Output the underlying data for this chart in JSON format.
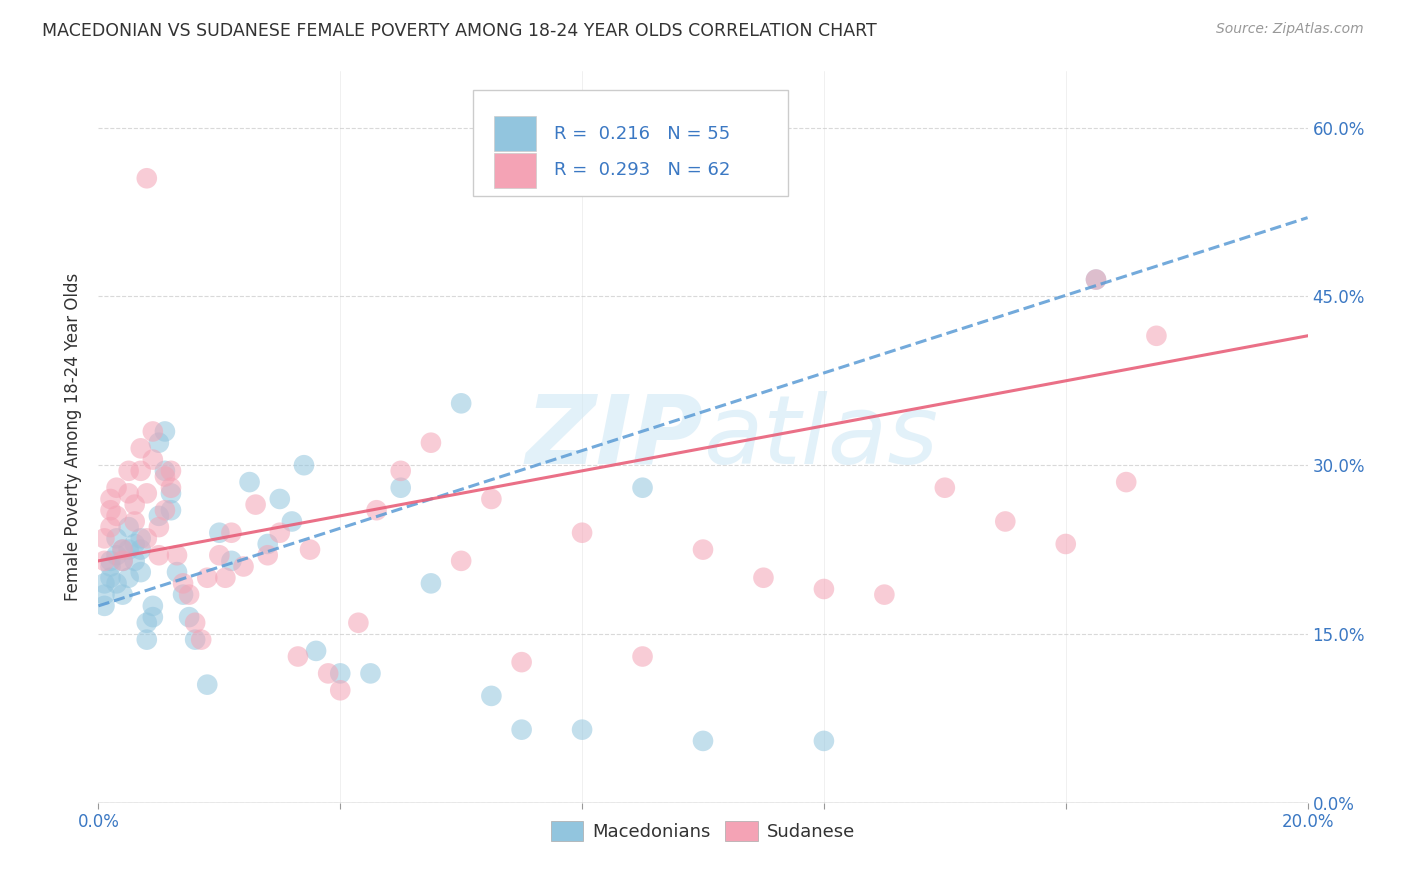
{
  "title": "MACEDONIAN VS SUDANESE FEMALE POVERTY AMONG 18-24 YEAR OLDS CORRELATION CHART",
  "source": "Source: ZipAtlas.com",
  "ylabel": "Female Poverty Among 18-24 Year Olds",
  "xlim": [
    0.0,
    0.2
  ],
  "ylim": [
    0.0,
    0.65
  ],
  "yticks": [
    0.0,
    0.15,
    0.3,
    0.45,
    0.6
  ],
  "ytick_labels": [
    "0.0%",
    "15.0%",
    "30.0%",
    "45.0%",
    "60.0%"
  ],
  "xticks": [
    0.0,
    0.04,
    0.08,
    0.12,
    0.16,
    0.2
  ],
  "macedonian_R": 0.216,
  "macedonian_N": 55,
  "sudanese_R": 0.293,
  "sudanese_N": 62,
  "macedonian_color": "#92c5de",
  "sudanese_color": "#f4a3b5",
  "trend_mac_color": "#5b9bd5",
  "trend_sud_color": "#e8607a",
  "watermark_color": "#d0e8f5",
  "background_color": "#ffffff",
  "grid_color": "#d0d0d0",
  "legend_label_mac": "Macedonians",
  "legend_label_sud": "Sudanese",
  "trend_mac_y0": 0.175,
  "trend_mac_y1": 0.52,
  "trend_sud_y0": 0.215,
  "trend_sud_y1": 0.415,
  "mac_scatter_x": [
    0.001,
    0.001,
    0.001,
    0.002,
    0.002,
    0.002,
    0.003,
    0.003,
    0.003,
    0.004,
    0.004,
    0.004,
    0.005,
    0.005,
    0.005,
    0.006,
    0.006,
    0.007,
    0.007,
    0.007,
    0.008,
    0.008,
    0.009,
    0.009,
    0.01,
    0.01,
    0.011,
    0.011,
    0.012,
    0.012,
    0.013,
    0.014,
    0.015,
    0.016,
    0.018,
    0.02,
    0.022,
    0.025,
    0.028,
    0.03,
    0.032,
    0.034,
    0.036,
    0.04,
    0.045,
    0.05,
    0.055,
    0.06,
    0.065,
    0.07,
    0.08,
    0.09,
    0.1,
    0.12,
    0.165
  ],
  "mac_scatter_y": [
    0.175,
    0.185,
    0.195,
    0.2,
    0.21,
    0.215,
    0.195,
    0.22,
    0.235,
    0.185,
    0.215,
    0.225,
    0.2,
    0.225,
    0.245,
    0.215,
    0.23,
    0.205,
    0.225,
    0.235,
    0.145,
    0.16,
    0.165,
    0.175,
    0.255,
    0.32,
    0.295,
    0.33,
    0.275,
    0.26,
    0.205,
    0.185,
    0.165,
    0.145,
    0.105,
    0.24,
    0.215,
    0.285,
    0.23,
    0.27,
    0.25,
    0.3,
    0.135,
    0.115,
    0.115,
    0.28,
    0.195,
    0.355,
    0.095,
    0.065,
    0.065,
    0.28,
    0.055,
    0.055,
    0.465
  ],
  "sud_scatter_x": [
    0.001,
    0.001,
    0.002,
    0.002,
    0.002,
    0.003,
    0.003,
    0.004,
    0.004,
    0.005,
    0.005,
    0.006,
    0.006,
    0.007,
    0.007,
    0.008,
    0.008,
    0.009,
    0.009,
    0.01,
    0.01,
    0.011,
    0.011,
    0.012,
    0.012,
    0.013,
    0.014,
    0.015,
    0.016,
    0.017,
    0.018,
    0.02,
    0.021,
    0.022,
    0.024,
    0.026,
    0.028,
    0.03,
    0.033,
    0.035,
    0.038,
    0.04,
    0.043,
    0.046,
    0.05,
    0.055,
    0.06,
    0.065,
    0.07,
    0.08,
    0.09,
    0.1,
    0.11,
    0.12,
    0.13,
    0.14,
    0.15,
    0.16,
    0.17,
    0.008,
    0.175,
    0.165
  ],
  "sud_scatter_y": [
    0.215,
    0.235,
    0.245,
    0.26,
    0.27,
    0.255,
    0.28,
    0.225,
    0.215,
    0.295,
    0.275,
    0.265,
    0.25,
    0.315,
    0.295,
    0.275,
    0.235,
    0.33,
    0.305,
    0.245,
    0.22,
    0.29,
    0.26,
    0.295,
    0.28,
    0.22,
    0.195,
    0.185,
    0.16,
    0.145,
    0.2,
    0.22,
    0.2,
    0.24,
    0.21,
    0.265,
    0.22,
    0.24,
    0.13,
    0.225,
    0.115,
    0.1,
    0.16,
    0.26,
    0.295,
    0.32,
    0.215,
    0.27,
    0.125,
    0.24,
    0.13,
    0.225,
    0.2,
    0.19,
    0.185,
    0.28,
    0.25,
    0.23,
    0.285,
    0.555,
    0.415,
    0.465
  ]
}
